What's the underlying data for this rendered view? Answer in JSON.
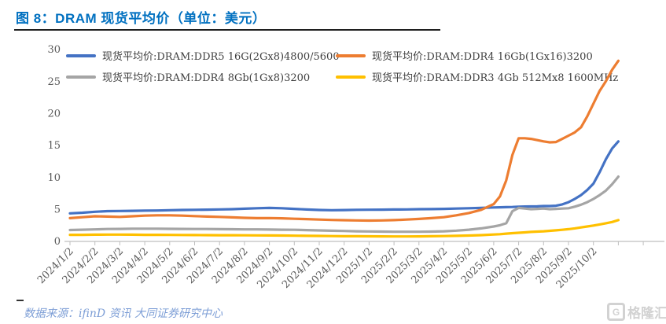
{
  "header": {
    "title": "图 8：DRAM 现货平均价（单位：美元）"
  },
  "footer": {
    "source": "数据来源：ifinD 资讯  大同证券研究中心",
    "watermark_icon": "G",
    "watermark": "格隆汇"
  },
  "chart_data": {
    "type": "line",
    "title": "图 8：DRAM 现货平均价（单位：美元）",
    "unit": "美元",
    "legend_position": "top",
    "grid": "off",
    "ylim": [
      0,
      30
    ],
    "yticks": [
      0,
      5,
      10,
      15,
      20,
      25,
      30
    ],
    "x_labels": [
      "2024/1/2",
      "2024/2/2",
      "2024/3/2",
      "2024/4/2",
      "2024/5/2",
      "2024/6/2",
      "2024/7/2",
      "2024/8/2",
      "2024/9/2",
      "2024/10/2",
      "2024/11/2",
      "2024/12/2",
      "2025/1/2",
      "2025/2/2",
      "2025/3/2",
      "2025/4/2",
      "2025/5/2",
      "2025/6/2",
      "2025/7/2",
      "2025/8/2",
      "2025/9/2",
      "2025/10/2"
    ],
    "x_unit": "months since 2024/1/2",
    "x": [
      0,
      0.5,
      1,
      1.5,
      2,
      2.5,
      3,
      3.5,
      4,
      4.5,
      5,
      5.5,
      6,
      6.5,
      7,
      7.5,
      8,
      8.5,
      9,
      9.5,
      10,
      10.5,
      11,
      11.5,
      12,
      12.5,
      13,
      13.5,
      14,
      14.5,
      15,
      15.5,
      16,
      16.5,
      17,
      17.25,
      17.5,
      17.75,
      18,
      18.25,
      18.5,
      18.75,
      19,
      19.25,
      19.5,
      19.75,
      20,
      20.25,
      20.5,
      20.75,
      21,
      21.25,
      21.5,
      21.75,
      22
    ],
    "series": [
      {
        "name": "现货平均价:DRAM:DDR5 16G(2Gx8)4800/5600",
        "color": "#4472C4",
        "values": [
          4.35,
          4.45,
          4.6,
          4.7,
          4.72,
          4.75,
          4.78,
          4.8,
          4.85,
          4.88,
          4.9,
          4.93,
          4.97,
          5.0,
          5.08,
          5.15,
          5.2,
          5.15,
          5.05,
          4.95,
          4.88,
          4.85,
          4.87,
          4.9,
          4.92,
          4.93,
          4.95,
          4.97,
          5.0,
          5.02,
          5.05,
          5.1,
          5.15,
          5.2,
          5.28,
          5.3,
          5.32,
          5.35,
          5.4,
          5.42,
          5.43,
          5.45,
          5.5,
          5.5,
          5.55,
          5.75,
          6.1,
          6.6,
          7.2,
          8.0,
          9.0,
          10.8,
          12.8,
          14.5,
          15.6
        ]
      },
      {
        "name": "现货平均价:DRAM:DDR4 16Gb(1Gx16)3200",
        "color": "#ED7D31",
        "values": [
          3.6,
          3.75,
          3.9,
          3.85,
          3.8,
          3.9,
          4.0,
          4.05,
          4.05,
          4.0,
          3.92,
          3.85,
          3.8,
          3.72,
          3.65,
          3.6,
          3.62,
          3.58,
          3.5,
          3.45,
          3.38,
          3.32,
          3.28,
          3.25,
          3.22,
          3.25,
          3.3,
          3.38,
          3.48,
          3.6,
          3.75,
          4.05,
          4.4,
          4.9,
          5.8,
          7.0,
          9.5,
          13.5,
          16.1,
          16.1,
          16.0,
          15.8,
          15.6,
          15.45,
          15.5,
          16.0,
          16.5,
          17.0,
          17.8,
          19.5,
          21.5,
          23.5,
          25.0,
          26.8,
          28.2
        ]
      },
      {
        "name": "现货平均价:DRAM:DDR4 8Gb(1Gx8)3200",
        "color": "#A5A5A5",
        "values": [
          1.75,
          1.8,
          1.85,
          1.9,
          1.92,
          1.95,
          1.95,
          1.95,
          1.93,
          1.92,
          1.9,
          1.9,
          1.88,
          1.87,
          1.85,
          1.85,
          1.82,
          1.8,
          1.78,
          1.73,
          1.68,
          1.63,
          1.6,
          1.55,
          1.52,
          1.5,
          1.48,
          1.47,
          1.47,
          1.5,
          1.55,
          1.65,
          1.8,
          2.0,
          2.3,
          2.5,
          2.8,
          4.7,
          5.2,
          5.1,
          5.0,
          5.05,
          5.1,
          5.0,
          5.05,
          5.1,
          5.15,
          5.4,
          5.7,
          6.1,
          6.6,
          7.2,
          7.9,
          8.9,
          10.1
        ]
      },
      {
        "name": "现货平均价:DRAM:DDR3 4Gb 512Mx8 1600MHz",
        "color": "#FFC000",
        "values": [
          1.0,
          1.0,
          1.02,
          1.03,
          1.03,
          1.02,
          1.0,
          1.0,
          0.98,
          0.97,
          0.96,
          0.95,
          0.94,
          0.93,
          0.92,
          0.91,
          0.9,
          0.88,
          0.86,
          0.84,
          0.82,
          0.8,
          0.78,
          0.77,
          0.76,
          0.75,
          0.74,
          0.74,
          0.75,
          0.77,
          0.8,
          0.84,
          0.88,
          0.95,
          1.05,
          1.1,
          1.18,
          1.25,
          1.32,
          1.38,
          1.45,
          1.5,
          1.55,
          1.62,
          1.7,
          1.78,
          1.88,
          2.0,
          2.15,
          2.3,
          2.45,
          2.62,
          2.8,
          3.0,
          3.3
        ]
      }
    ]
  }
}
